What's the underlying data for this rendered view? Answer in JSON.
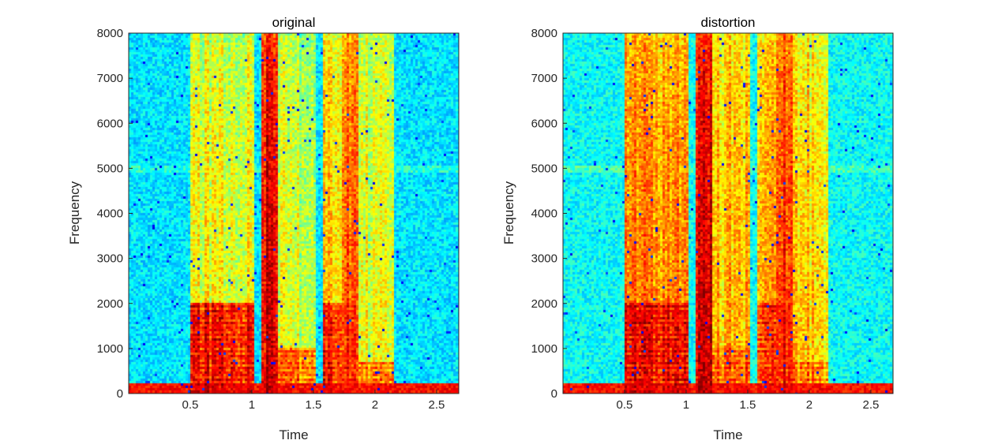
{
  "chart_data": [
    {
      "type": "heatmap",
      "title": "original",
      "xlabel": "Time",
      "ylabel": "Frequency",
      "xlim": [
        0,
        2.68
      ],
      "ylim": [
        0,
        8000
      ],
      "xticks": [
        0.5,
        1,
        1.5,
        2,
        2.5
      ],
      "xtick_labels": [
        "0.5",
        "1",
        "1.5",
        "2",
        "2.5"
      ],
      "yticks": [
        0,
        1000,
        2000,
        3000,
        4000,
        5000,
        6000,
        7000,
        8000
      ],
      "ytick_labels": [
        "0",
        "1000",
        "2000",
        "3000",
        "4000",
        "5000",
        "6000",
        "7000",
        "8000"
      ],
      "colormap": "jet",
      "silence_level": 0.35,
      "segments": [
        {
          "t0": 0.5,
          "t1": 1.02,
          "hf": 0.62,
          "lf": 0.9,
          "lf_top": 2000
        },
        {
          "t0": 1.08,
          "t1": 1.22,
          "hf": 0.92,
          "lf": 0.9,
          "lf_top": 1200
        },
        {
          "t0": 1.22,
          "t1": 1.52,
          "hf": 0.58,
          "lf": 0.8,
          "lf_top": 1000
        },
        {
          "t0": 1.57,
          "t1": 1.84,
          "hf": 0.68,
          "lf": 0.88,
          "lf_top": 2000
        },
        {
          "t0": 1.74,
          "t1": 1.86,
          "hf": 0.82,
          "lf": 0.8,
          "lf_top": 1200
        },
        {
          "t0": 1.86,
          "t1": 2.16,
          "hf": 0.6,
          "lf": 0.78,
          "lf_top": 700
        }
      ]
    },
    {
      "type": "heatmap",
      "title": "distortion",
      "xlabel": "Time",
      "ylabel": "Frequency",
      "xlim": [
        0,
        2.68
      ],
      "ylim": [
        0,
        8000
      ],
      "xticks": [
        0.5,
        1,
        1.5,
        2,
        2.5
      ],
      "xtick_labels": [
        "0.5",
        "1",
        "1.5",
        "2",
        "2.5"
      ],
      "yticks": [
        0,
        1000,
        2000,
        3000,
        4000,
        5000,
        6000,
        7000,
        8000
      ],
      "ytick_labels": [
        "0",
        "1000",
        "2000",
        "3000",
        "4000",
        "5000",
        "6000",
        "7000",
        "8000"
      ],
      "colormap": "jet",
      "silence_level": 0.38,
      "segments": [
        {
          "t0": 0.5,
          "t1": 1.02,
          "hf": 0.76,
          "lf": 0.92,
          "lf_top": 2000
        },
        {
          "t0": 1.08,
          "t1": 1.22,
          "hf": 0.92,
          "lf": 0.9,
          "lf_top": 1200
        },
        {
          "t0": 1.22,
          "t1": 1.52,
          "hf": 0.7,
          "lf": 0.82,
          "lf_top": 1000
        },
        {
          "t0": 1.57,
          "t1": 1.84,
          "hf": 0.74,
          "lf": 0.88,
          "lf_top": 2000
        },
        {
          "t0": 1.74,
          "t1": 1.86,
          "hf": 0.85,
          "lf": 0.8,
          "lf_top": 1200
        },
        {
          "t0": 1.86,
          "t1": 2.16,
          "hf": 0.68,
          "lf": 0.8,
          "lf_top": 700
        }
      ]
    }
  ]
}
